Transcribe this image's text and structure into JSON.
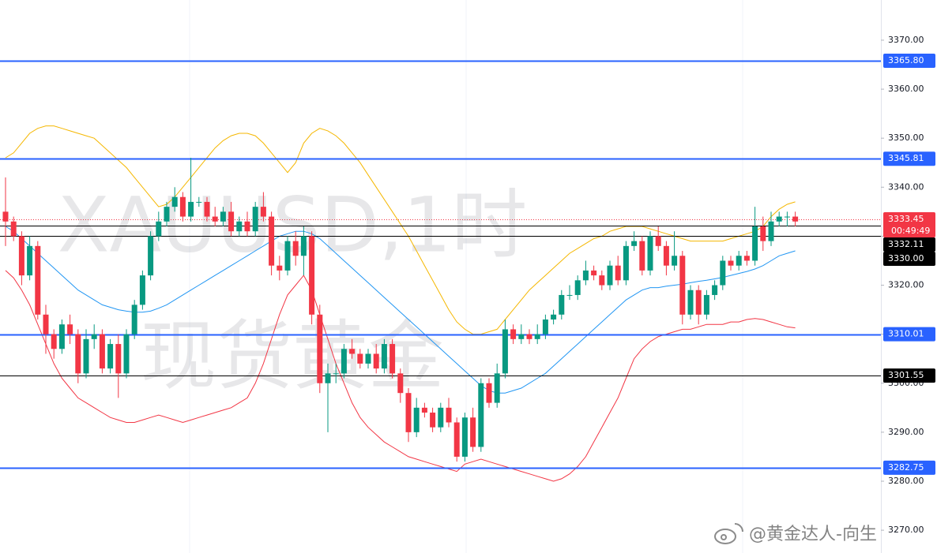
{
  "chart_data": {
    "type": "candlestick",
    "watermark_symbol": "XAUUSD,1时",
    "watermark_name": "现货黄金",
    "source_watermark": "@黄金达人-向生",
    "ylim": [
      3265.35,
      3378.2
    ],
    "yticks": [
      {
        "value": 3270,
        "label": "3270.00"
      },
      {
        "value": 3280,
        "label": "3280.00"
      },
      {
        "value": 3290,
        "label": "3290.00"
      },
      {
        "value": 3300,
        "label": "3300.00"
      },
      {
        "value": 3310,
        "label": "3310.00"
      },
      {
        "value": 3320,
        "label": "3320.00"
      },
      {
        "value": 3330,
        "label": "3330.00"
      },
      {
        "value": 3340,
        "label": "3340.00"
      },
      {
        "value": 3350,
        "label": "3350.00"
      },
      {
        "value": 3360,
        "label": "3360.00"
      },
      {
        "value": 3370,
        "label": "3370.00"
      }
    ],
    "up_color": "#089981",
    "down_color": "#f23645",
    "open": [
      3335,
      3333,
      3330,
      3322,
      3328,
      3314,
      3310,
      3307,
      3312,
      3310,
      3302,
      3309,
      3310,
      3303,
      3308,
      3302,
      3310,
      3316,
      3322,
      3330,
      3333,
      3336,
      3338,
      3334,
      3337,
      3337,
      3334,
      3333,
      3335,
      3331,
      3333,
      3331,
      3336,
      3334,
      3324,
      3323,
      3329,
      3326,
      3330,
      3314,
      3300,
      3302,
      3302,
      3307,
      3306,
      3304,
      3306,
      3303,
      3308,
      3302,
      3298,
      3290,
      3295,
      3294,
      3291,
      3295,
      3292,
      3285,
      3293,
      3287,
      3300,
      3296,
      3302,
      3311,
      3309,
      3310,
      3309,
      3310,
      3313,
      3314,
      3318,
      3318,
      3321,
      3323,
      3322,
      3320,
      3324,
      3321,
      3328,
      3329,
      3323,
      3330,
      3328,
      3324,
      3326,
      3314,
      3319,
      3314,
      3318,
      3320,
      3325,
      3324,
      3326,
      3325,
      3332,
      3329,
      3333,
      3334,
      3334
    ],
    "high": [
      3342,
      3334,
      3331,
      3330,
      3329,
      3316,
      3311,
      3313,
      3314,
      3311,
      3311,
      3312,
      3311,
      3309,
      3310,
      3311,
      3317,
      3323,
      3331,
      3335,
      3337,
      3340,
      3339,
      3346,
      3338,
      3338,
      3336,
      3336,
      3337,
      3334,
      3335,
      3337,
      3339,
      3335,
      3326,
      3330,
      3331,
      3332,
      3331,
      3316,
      3304,
      3304,
      3308,
      3309,
      3307,
      3307,
      3308,
      3309,
      3309,
      3303,
      3299,
      3297,
      3296,
      3295,
      3296,
      3297,
      3293,
      3294,
      3295,
      3301,
      3301,
      3304,
      3313,
      3312,
      3312,
      3311,
      3312,
      3314,
      3315,
      3319,
      3320,
      3322,
      3325,
      3324,
      3323,
      3325,
      3326,
      3329,
      3331,
      3330,
      3331,
      3332,
      3329,
      3331,
      3327,
      3320,
      3320,
      3319,
      3321,
      3326,
      3326,
      3327,
      3327,
      3336,
      3334,
      3335,
      3335,
      3335,
      3335
    ],
    "low": [
      3328,
      3329,
      3320,
      3321,
      3313,
      3306,
      3305,
      3306,
      3308,
      3300,
      3301,
      3307,
      3302,
      3302,
      3297,
      3301,
      3309,
      3315,
      3321,
      3329,
      3332,
      3335,
      3333,
      3333,
      3336,
      3333,
      3332,
      3332,
      3330,
      3330,
      3330,
      3330,
      3333,
      3322,
      3321,
      3322,
      3324,
      3322,
      3312,
      3298,
      3290,
      3300,
      3301,
      3305,
      3303,
      3303,
      3302,
      3302,
      3301,
      3296,
      3288,
      3289,
      3293,
      3290,
      3290,
      3291,
      3284,
      3284,
      3286,
      3286,
      3295,
      3295,
      3301,
      3308,
      3308,
      3308,
      3308,
      3309,
      3312,
      3313,
      3317,
      3317,
      3320,
      3321,
      3319,
      3319,
      3320,
      3320,
      3327,
      3322,
      3322,
      3327,
      3322,
      3323,
      3312,
      3313,
      3312,
      3313,
      3317,
      3319,
      3323,
      3323,
      3324,
      3324,
      3327,
      3328,
      3332,
      3332,
      3332
    ],
    "close": [
      3333,
      3330,
      3322,
      3328,
      3314,
      3310,
      3307,
      3312,
      3310,
      3302,
      3309,
      3310,
      3303,
      3308,
      3302,
      3310,
      3316,
      3322,
      3330,
      3333,
      3336,
      3338,
      3334,
      3337,
      3337,
      3334,
      3333,
      3335,
      3331,
      3333,
      3331,
      3336,
      3334,
      3324,
      3323,
      3329,
      3326,
      3330,
      3314,
      3300,
      3302,
      3302,
      3307,
      3306,
      3304,
      3306,
      3303,
      3308,
      3302,
      3298,
      3290,
      3295,
      3294,
      3291,
      3295,
      3292,
      3285,
      3293,
      3287,
      3300,
      3296,
      3302,
      3311,
      3309,
      3310,
      3309,
      3310,
      3313,
      3314,
      3318,
      3318,
      3321,
      3323,
      3322,
      3320,
      3324,
      3321,
      3328,
      3329,
      3323,
      3330,
      3328,
      3324,
      3326,
      3314,
      3319,
      3314,
      3318,
      3320,
      3325,
      3324,
      3326,
      3325,
      3332,
      3329,
      3333,
      3334,
      3334,
      3333
    ],
    "bands": [
      {
        "color": "#f5b700",
        "values": [
          3346,
          3347,
          3349,
          3351,
          3352,
          3352.5,
          3352.5,
          3352,
          3351.5,
          3351,
          3350.5,
          3350,
          3348.5,
          3347,
          3345.5,
          3344,
          3342,
          3340,
          3338,
          3336,
          3336.5,
          3338,
          3340,
          3342,
          3344,
          3346,
          3348,
          3349.5,
          3350.5,
          3351,
          3351,
          3350.5,
          3349,
          3347,
          3345,
          3343,
          3345,
          3349,
          3351,
          3352,
          3351.5,
          3350.5,
          3349,
          3347,
          3345,
          3342.5,
          3340,
          3337.5,
          3335,
          3332.5,
          3330,
          3327,
          3324,
          3321,
          3318,
          3315,
          3312.5,
          3311,
          3310,
          3310,
          3310.5,
          3311,
          3313,
          3315,
          3317,
          3319,
          3320.5,
          3322,
          3323.5,
          3325,
          3326.5,
          3327.5,
          3328.5,
          3329.5,
          3330,
          3331,
          3331.5,
          3332,
          3332,
          3332,
          3331.5,
          3331,
          3330.5,
          3330,
          3329.5,
          3329,
          3329,
          3329,
          3329,
          3329,
          3329.5,
          3330,
          3330.5,
          3331,
          3332,
          3334,
          3335.5,
          3336.5,
          3337
        ]
      },
      {
        "color": "#2196f3",
        "values": [
          3332,
          3331,
          3329.5,
          3328,
          3326.5,
          3325,
          3323.5,
          3322,
          3320.5,
          3319,
          3318,
          3317,
          3316,
          3315.5,
          3315,
          3314.7,
          3314.5,
          3314.5,
          3314.7,
          3315.3,
          3316,
          3317,
          3318,
          3319,
          3320,
          3321,
          3322,
          3323,
          3324,
          3325,
          3326,
          3327,
          3328,
          3329,
          3330,
          3330.5,
          3331,
          3331,
          3330.5,
          3329.5,
          3328,
          3326.5,
          3325,
          3323.5,
          3322,
          3320.5,
          3319,
          3317.5,
          3316,
          3314.5,
          3313,
          3311.5,
          3310,
          3308.5,
          3307,
          3305.5,
          3304,
          3302.5,
          3301,
          3299.5,
          3298.5,
          3298,
          3298,
          3298.5,
          3299,
          3300,
          3301,
          3302,
          3303.5,
          3305,
          3306.5,
          3308,
          3309.5,
          3311,
          3312.5,
          3314,
          3315.5,
          3317,
          3318,
          3319,
          3319.5,
          3319.5,
          3319.8,
          3320,
          3320.2,
          3320.5,
          3320.8,
          3321,
          3321.3,
          3321.6,
          3322,
          3322.4,
          3322.8,
          3323.3,
          3324,
          3325,
          3326,
          3326.5,
          3327
        ]
      },
      {
        "color": "#f23645",
        "values": [
          3323,
          3321.5,
          3319,
          3316,
          3312,
          3308,
          3304,
          3301,
          3299,
          3297,
          3296,
          3295,
          3294,
          3293,
          3292.5,
          3292,
          3292,
          3292.5,
          3293,
          3293.5,
          3293,
          3292.5,
          3292,
          3292.5,
          3293,
          3293.5,
          3294,
          3294.5,
          3295,
          3296,
          3297,
          3300,
          3304,
          3309,
          3314,
          3318,
          3320,
          3322,
          3319,
          3314,
          3309,
          3304,
          3300,
          3296,
          3293,
          3291,
          3289.5,
          3288,
          3287,
          3286,
          3285,
          3284.5,
          3284,
          3283.5,
          3283,
          3282.5,
          3282,
          3283.5,
          3284,
          3284.5,
          3284,
          3283.5,
          3283,
          3282.5,
          3282,
          3281.5,
          3281,
          3280.5,
          3280,
          3280.5,
          3281.5,
          3283,
          3285,
          3288,
          3291,
          3294,
          3297,
          3301,
          3305,
          3307,
          3308.5,
          3309.5,
          3310,
          3310.5,
          3311,
          3311,
          3311.5,
          3312,
          3312,
          3312,
          3312.5,
          3312.5,
          3313,
          3313.2,
          3313,
          3312.5,
          3312,
          3311.5,
          3311.3
        ]
      }
    ],
    "price_lines": [
      {
        "value": 3365.8,
        "label": "3365.80",
        "color": "#2962ff"
      },
      {
        "value": 3345.81,
        "label": "3345.81",
        "color": "#2962ff"
      },
      {
        "value": 3332.11,
        "label": "3332.11",
        "color": "#000000"
      },
      {
        "value": 3330,
        "label": "3330.00",
        "color": "#000000"
      },
      {
        "value": 3310.01,
        "label": "3310.01",
        "color": "#2962ff"
      },
      {
        "value": 3301.55,
        "label": "3301.55",
        "color": "#000000"
      },
      {
        "value": 3282.75,
        "label": "3282.75",
        "color": "#2962ff"
      }
    ],
    "last_price": {
      "value": 3333.45,
      "label": "3333.45",
      "countdown": "00:49:49",
      "color": "#f23645"
    }
  }
}
